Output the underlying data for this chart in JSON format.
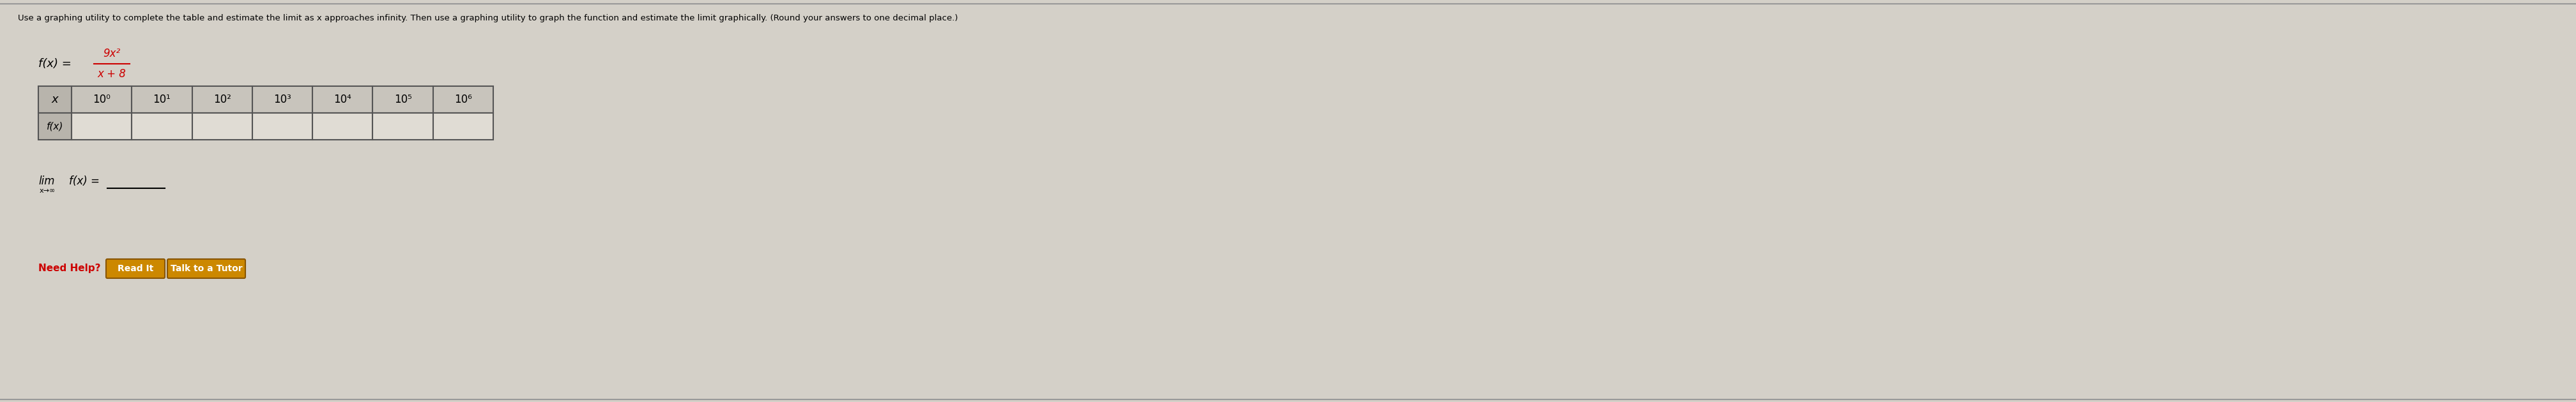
{
  "instruction_text": "Use a graphing utility to complete the table and estimate the limit as x approaches infinity. Then use a graphing utility to graph the function and estimate the limit graphically. (Round your answers to one decimal place.)",
  "x_row_label": "x",
  "fx_row_label": "f(x)",
  "x_values": [
    "10⁰",
    "10¹",
    "10²",
    "10³",
    "10⁴",
    "10⁵",
    "10⁶"
  ],
  "need_help_text": "Need Help?",
  "button1_text": "Read It",
  "button2_text": "Talk to a Tutor",
  "bg_color": "#d4d0c8",
  "table_header_bg": "#c8c4bc",
  "table_row_label_bg": "#b8b4ac",
  "table_data_bg": "#e0dcd4",
  "table_border_color": "#555555",
  "function_color": "#cc0000",
  "button_bg": "#cc8800",
  "button_border": "#885500",
  "button_text_color": "#ffffff",
  "text_color": "#000000",
  "link_color": "#cc0000",
  "line_color": "#999999"
}
